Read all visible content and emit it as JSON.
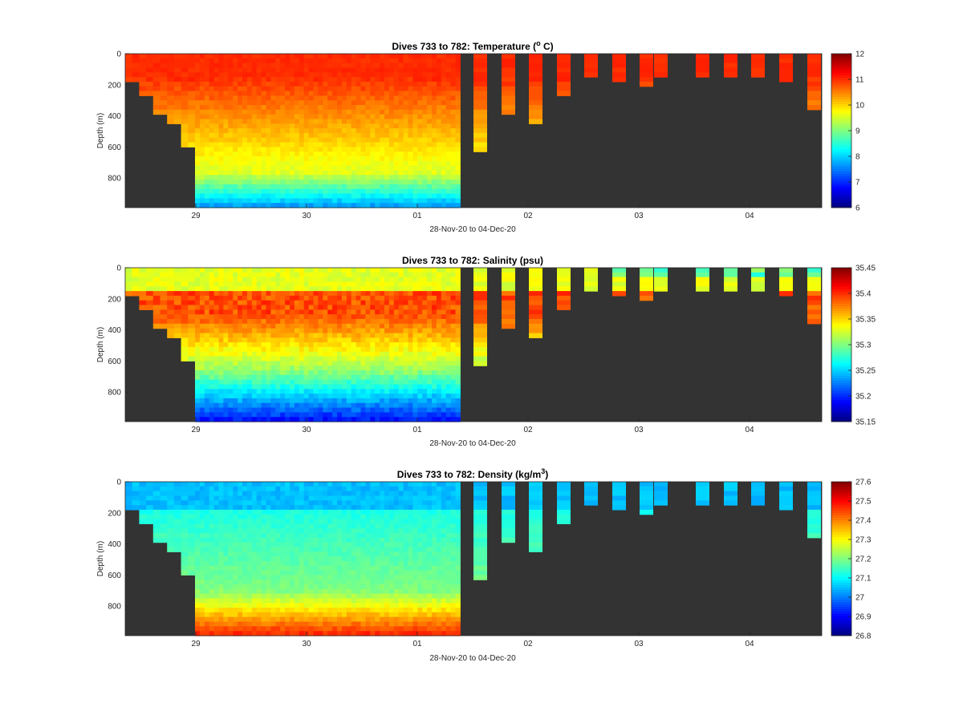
{
  "figure": {
    "background": "#ffffff",
    "land_color": "#333333"
  },
  "chart_data": [
    {
      "type": "heatmap",
      "variable": "temperature",
      "title": "Dives 733 to 782: Temperature (",
      "title_sup": "o",
      "title_tail": " C)",
      "xlabel": "28-Nov-20 to 04-Dec-20",
      "ylabel": "Depth (m)",
      "x_ticks": [
        "29",
        "30",
        "01",
        "02",
        "03",
        "04"
      ],
      "y_ticks": [
        "0",
        "200",
        "400",
        "600",
        "800"
      ],
      "ylim": [
        0,
        990
      ],
      "y_reversed": true,
      "colorbar": {
        "ticks": [
          "12",
          "11",
          "10",
          "9",
          "8",
          "7",
          "6"
        ],
        "range": [
          6,
          12
        ],
        "colormap": "jet"
      },
      "profile_values": {
        "surface": 11.0,
        "mid": 9.7,
        "deep": 8.0,
        "short_profiles": 10.7
      }
    },
    {
      "type": "heatmap",
      "variable": "salinity",
      "title": "Dives 733 to 782: Salinity (psu)",
      "title_sup": "",
      "title_tail": "",
      "xlabel": "28-Nov-20 to 04-Dec-20",
      "ylabel": "Depth (m)",
      "x_ticks": [
        "29",
        "30",
        "01",
        "02",
        "03",
        "04"
      ],
      "y_ticks": [
        "0",
        "200",
        "400",
        "600",
        "800"
      ],
      "ylim": [
        0,
        990
      ],
      "y_reversed": true,
      "colorbar": {
        "ticks": [
          "35.45",
          "35.4",
          "35.35",
          "35.3",
          "35.25",
          "35.2",
          "35.15"
        ],
        "range": [
          35.15,
          35.45
        ],
        "colormap": "jet"
      },
      "profile_values": {
        "surface": 35.33,
        "max_layer": 35.39,
        "mid": 35.31,
        "deep": 35.21,
        "short_profiles": 35.36
      }
    },
    {
      "type": "heatmap",
      "variable": "density",
      "title": "Dives 733 to 782: Density (kg/m",
      "title_sup": "3",
      "title_tail": ")",
      "xlabel": "28-Nov-20 to 04-Dec-20",
      "ylabel": "Depth (m)",
      "x_ticks": [
        "29",
        "30",
        "01",
        "02",
        "03",
        "04"
      ],
      "y_ticks": [
        "0",
        "200",
        "400",
        "600",
        "800"
      ],
      "ylim": [
        0,
        990
      ],
      "y_reversed": true,
      "colorbar": {
        "ticks": [
          "27.6",
          "27.5",
          "27.4",
          "27.3",
          "27.2",
          "27.1",
          "27",
          "26.9",
          "26.8"
        ],
        "range": [
          26.8,
          27.6
        ],
        "colormap": "jet"
      },
      "profile_values": {
        "surface": 27.05,
        "mid": 27.2,
        "deep": 27.4,
        "short_profiles": 27.1
      }
    }
  ],
  "sections": {
    "day_positions_x": [
      0.0,
      0.5,
      1.0,
      1.5,
      2.0,
      2.5,
      3.0
    ],
    "step_profiles_depth": [
      190,
      255,
      380,
      450,
      610
    ],
    "short_profiles_depth": [
      620,
      375,
      460,
      280,
      150,
      190,
      200,
      150,
      150,
      150,
      150,
      180,
      370
    ]
  }
}
